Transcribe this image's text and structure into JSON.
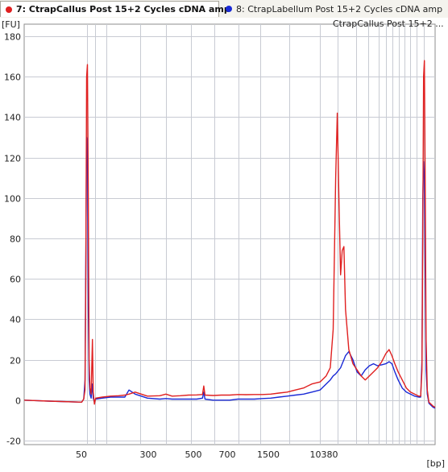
{
  "tabs": [
    {
      "label": "7: CtrapCallus Post 15+2 Cycles cDNA amp",
      "color": "#e02020",
      "active": true
    },
    {
      "label": "8: CtrapLabellum Post 15+2 Cycles cDNA amp",
      "color": "#1a2ad6",
      "active": false
    }
  ],
  "plot": {
    "legend_text": "CtrapCallus Post 15+2 ...",
    "y_unit": "[FU]",
    "x_unit": "[bp]"
  },
  "chart_data": {
    "type": "line",
    "xlabel": "[bp]",
    "ylabel": "[FU]",
    "ylim": [
      -22,
      186
    ],
    "yticks": [
      -20,
      0,
      20,
      40,
      60,
      80,
      100,
      120,
      140,
      160,
      180
    ],
    "xticks": [
      "50",
      "300",
      "500",
      "700",
      "1500",
      "10380"
    ],
    "grid": true,
    "legend": "top-right",
    "series": [
      {
        "name": "CtrapCallus Post 15+2 Cycles cDNA amp",
        "color": "#e02020",
        "points": [
          [
            0.0,
            0.0
          ],
          [
            0.06,
            -0.5
          ],
          [
            0.14,
            -1.0
          ],
          [
            0.145,
            0.5
          ],
          [
            0.148,
            5.0
          ],
          [
            0.15,
            60.0
          ],
          [
            0.152,
            160.0
          ],
          [
            0.154,
            166.0
          ],
          [
            0.156,
            100.0
          ],
          [
            0.158,
            20.0
          ],
          [
            0.16,
            6.0
          ],
          [
            0.163,
            3.0
          ],
          [
            0.166,
            30.0
          ],
          [
            0.168,
            4.0
          ],
          [
            0.171,
            -2.0
          ],
          [
            0.174,
            1.0
          ],
          [
            0.19,
            1.5
          ],
          [
            0.21,
            2.0
          ],
          [
            0.23,
            2.2
          ],
          [
            0.245,
            2.5
          ],
          [
            0.255,
            3.0
          ],
          [
            0.27,
            4.0
          ],
          [
            0.3,
            2.0
          ],
          [
            0.33,
            2.2
          ],
          [
            0.345,
            3.0
          ],
          [
            0.36,
            2.0
          ],
          [
            0.38,
            2.2
          ],
          [
            0.4,
            2.5
          ],
          [
            0.42,
            2.6
          ],
          [
            0.434,
            2.8
          ],
          [
            0.437,
            7.0
          ],
          [
            0.44,
            2.5
          ],
          [
            0.46,
            2.3
          ],
          [
            0.48,
            2.5
          ],
          [
            0.5,
            2.5
          ],
          [
            0.52,
            2.8
          ],
          [
            0.54,
            2.7
          ],
          [
            0.56,
            2.8
          ],
          [
            0.58,
            2.8
          ],
          [
            0.6,
            3.0
          ],
          [
            0.62,
            3.5
          ],
          [
            0.64,
            4.0
          ],
          [
            0.66,
            5.0
          ],
          [
            0.68,
            6.0
          ],
          [
            0.7,
            8.0
          ],
          [
            0.72,
            9.0
          ],
          [
            0.735,
            12.0
          ],
          [
            0.745,
            16.0
          ],
          [
            0.752,
            35.0
          ],
          [
            0.758,
            110.0
          ],
          [
            0.762,
            142.0
          ],
          [
            0.766,
            98.0
          ],
          [
            0.77,
            62.0
          ],
          [
            0.774,
            74.0
          ],
          [
            0.778,
            76.0
          ],
          [
            0.782,
            45.0
          ],
          [
            0.79,
            25.0
          ],
          [
            0.8,
            18.0
          ],
          [
            0.81,
            15.0
          ],
          [
            0.82,
            12.0
          ],
          [
            0.83,
            10.0
          ],
          [
            0.84,
            12.0
          ],
          [
            0.85,
            14.0
          ],
          [
            0.86,
            16.0
          ],
          [
            0.87,
            19.0
          ],
          [
            0.88,
            23.0
          ],
          [
            0.888,
            25.0
          ],
          [
            0.895,
            22.0
          ],
          [
            0.902,
            18.0
          ],
          [
            0.91,
            14.0
          ],
          [
            0.92,
            10.0
          ],
          [
            0.93,
            6.0
          ],
          [
            0.94,
            4.0
          ],
          [
            0.95,
            3.0
          ],
          [
            0.96,
            2.0
          ],
          [
            0.965,
            2.0
          ],
          [
            0.968,
            15.0
          ],
          [
            0.97,
            80.0
          ],
          [
            0.972,
            160.0
          ],
          [
            0.974,
            168.0
          ],
          [
            0.976,
            100.0
          ],
          [
            0.978,
            30.0
          ],
          [
            0.981,
            5.0
          ],
          [
            0.985,
            -1.0
          ],
          [
            0.99,
            -2.0
          ],
          [
            0.995,
            -3.0
          ],
          [
            1.0,
            -3.5
          ]
        ]
      },
      {
        "name": "CtrapLabellum Post 15+2 Cycles cDNA amp",
        "color": "#1a2ad6",
        "points": [
          [
            0.0,
            0.0
          ],
          [
            0.06,
            -0.5
          ],
          [
            0.14,
            -1.0
          ],
          [
            0.145,
            0.5
          ],
          [
            0.148,
            10.0
          ],
          [
            0.15,
            70.0
          ],
          [
            0.152,
            130.0
          ],
          [
            0.154,
            128.0
          ],
          [
            0.156,
            45.0
          ],
          [
            0.158,
            10.0
          ],
          [
            0.16,
            3.0
          ],
          [
            0.163,
            1.0
          ],
          [
            0.166,
            8.0
          ],
          [
            0.168,
            1.0
          ],
          [
            0.171,
            -1.0
          ],
          [
            0.174,
            0.5
          ],
          [
            0.19,
            1.0
          ],
          [
            0.21,
            1.5
          ],
          [
            0.23,
            1.5
          ],
          [
            0.245,
            1.5
          ],
          [
            0.255,
            5.0
          ],
          [
            0.27,
            3.0
          ],
          [
            0.3,
            1.0
          ],
          [
            0.33,
            0.5
          ],
          [
            0.345,
            0.8
          ],
          [
            0.36,
            0.5
          ],
          [
            0.38,
            0.5
          ],
          [
            0.4,
            0.5
          ],
          [
            0.42,
            0.5
          ],
          [
            0.434,
            1.0
          ],
          [
            0.437,
            4.0
          ],
          [
            0.44,
            0.5
          ],
          [
            0.46,
            0.0
          ],
          [
            0.48,
            0.0
          ],
          [
            0.5,
            0.0
          ],
          [
            0.52,
            0.5
          ],
          [
            0.54,
            0.5
          ],
          [
            0.56,
            0.5
          ],
          [
            0.58,
            0.8
          ],
          [
            0.6,
            1.0
          ],
          [
            0.62,
            1.5
          ],
          [
            0.64,
            2.0
          ],
          [
            0.66,
            2.5
          ],
          [
            0.68,
            3.0
          ],
          [
            0.7,
            4.0
          ],
          [
            0.72,
            5.0
          ],
          [
            0.735,
            8.0
          ],
          [
            0.745,
            10.0
          ],
          [
            0.752,
            12.0
          ],
          [
            0.758,
            13.0
          ],
          [
            0.762,
            14.0
          ],
          [
            0.766,
            15.0
          ],
          [
            0.77,
            16.0
          ],
          [
            0.774,
            18.0
          ],
          [
            0.778,
            20.0
          ],
          [
            0.782,
            22.0
          ],
          [
            0.79,
            24.0
          ],
          [
            0.8,
            20.0
          ],
          [
            0.81,
            14.0
          ],
          [
            0.82,
            12.0
          ],
          [
            0.83,
            15.0
          ],
          [
            0.84,
            17.0
          ],
          [
            0.85,
            18.0
          ],
          [
            0.86,
            17.0
          ],
          [
            0.87,
            17.5
          ],
          [
            0.88,
            18.0
          ],
          [
            0.888,
            19.0
          ],
          [
            0.895,
            18.0
          ],
          [
            0.902,
            14.0
          ],
          [
            0.91,
            10.0
          ],
          [
            0.92,
            6.0
          ],
          [
            0.93,
            4.0
          ],
          [
            0.94,
            3.0
          ],
          [
            0.95,
            2.0
          ],
          [
            0.96,
            1.5
          ],
          [
            0.965,
            1.5
          ],
          [
            0.968,
            20.0
          ],
          [
            0.97,
            100.0
          ],
          [
            0.972,
            118.0
          ],
          [
            0.974,
            110.0
          ],
          [
            0.976,
            60.0
          ],
          [
            0.978,
            15.0
          ],
          [
            0.981,
            3.0
          ],
          [
            0.985,
            -1.5
          ],
          [
            0.99,
            -2.5
          ],
          [
            0.995,
            -3.5
          ],
          [
            1.0,
            -4.0
          ]
        ]
      }
    ]
  }
}
